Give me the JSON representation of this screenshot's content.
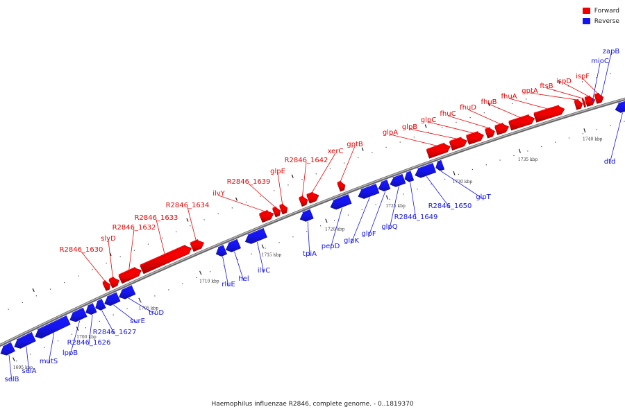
{
  "legend": {
    "forward_label": "Forward",
    "reverse_label": "Reverse",
    "forward_color": "#ee0000",
    "reverse_color": "#1414ee"
  },
  "caption": "Haemophilus influenzae R2846, complete genome. - 0..1819370",
  "ruler": [
    {
      "label": "1695 kbp"
    },
    {
      "label": "1700 kbp"
    },
    {
      "label": "1705 kbp"
    },
    {
      "label": "1710 kbp"
    },
    {
      "label": "1715 kbp"
    },
    {
      "label": "1720 kbp"
    },
    {
      "label": "1725 kbp"
    },
    {
      "label": "1730 kbp"
    },
    {
      "label": "1735 kbp"
    },
    {
      "label": "1740 kbp"
    }
  ],
  "forward_genes": [
    {
      "name": "R2846_1630"
    },
    {
      "name": "slyD"
    },
    {
      "name": "R2846_1632"
    },
    {
      "name": "R2846_1633"
    },
    {
      "name": "R2846_1634"
    },
    {
      "name": "ilvY"
    },
    {
      "name": "R2846_1639"
    },
    {
      "name": "glpE"
    },
    {
      "name": "R2846_1642"
    },
    {
      "name": "xerC"
    },
    {
      "name": "gptB"
    },
    {
      "name": "glpA"
    },
    {
      "name": "glpB"
    },
    {
      "name": "glpC"
    },
    {
      "name": "fhuC"
    },
    {
      "name": "fhuD"
    },
    {
      "name": "fhuB"
    },
    {
      "name": "fhuA"
    },
    {
      "name": "gptA"
    },
    {
      "name": "ftsB"
    },
    {
      "name": "ispD"
    },
    {
      "name": "ispF"
    }
  ],
  "reverse_genes": [
    {
      "name": "selB"
    },
    {
      "name": "selA"
    },
    {
      "name": "mutS"
    },
    {
      "name": "lppB"
    },
    {
      "name": "R2846_1626"
    },
    {
      "name": "R2846_1627"
    },
    {
      "name": "surE"
    },
    {
      "name": "truD"
    },
    {
      "name": "rluE"
    },
    {
      "name": "hel"
    },
    {
      "name": "ilvC"
    },
    {
      "name": "tpiA"
    },
    {
      "name": "pepD"
    },
    {
      "name": "glpK"
    },
    {
      "name": "glpF"
    },
    {
      "name": "glpQ"
    },
    {
      "name": "R2846_1649"
    },
    {
      "name": "R2846_1650"
    },
    {
      "name": "glpT"
    },
    {
      "name": "dtd"
    },
    {
      "name": "mioC"
    },
    {
      "name": "zapB"
    }
  ]
}
